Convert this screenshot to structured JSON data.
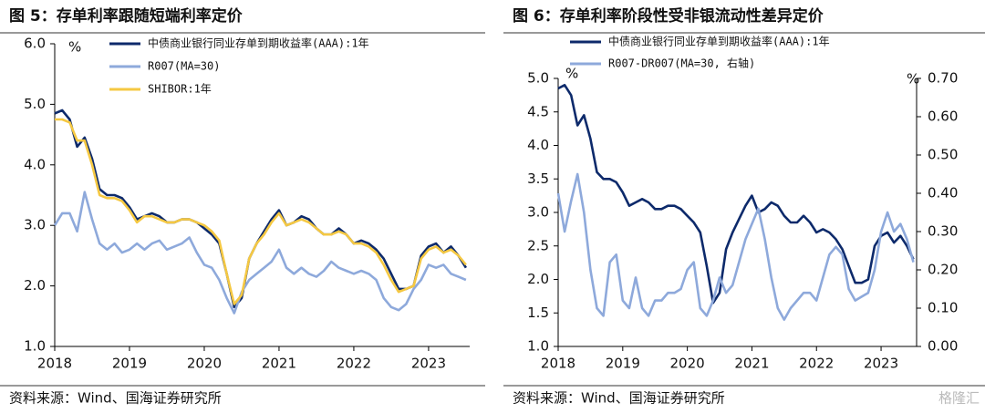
{
  "chart_data": [
    {
      "type": "line",
      "title": "图 5：存单利率跟随短端利率定价",
      "y_unit": "%",
      "source": "资料来源：Wind、国海证券研究所",
      "x": [
        2018.0,
        2018.1,
        2018.2,
        2018.3,
        2018.4,
        2018.5,
        2018.6,
        2018.7,
        2018.8,
        2018.9,
        2019.0,
        2019.1,
        2019.2,
        2019.3,
        2019.4,
        2019.5,
        2019.6,
        2019.7,
        2019.8,
        2019.9,
        2020.0,
        2020.1,
        2020.2,
        2020.3,
        2020.4,
        2020.5,
        2020.6,
        2020.7,
        2020.8,
        2020.9,
        2021.0,
        2021.1,
        2021.2,
        2021.3,
        2021.4,
        2021.5,
        2021.6,
        2021.7,
        2021.8,
        2021.9,
        2022.0,
        2022.1,
        2022.2,
        2022.3,
        2022.4,
        2022.5,
        2022.6,
        2022.7,
        2022.8,
        2022.9,
        2023.0,
        2023.1,
        2023.2,
        2023.3,
        2023.4,
        2023.5
      ],
      "xlim": [
        2018,
        2023.55
      ],
      "xticks": [
        2018,
        2019,
        2020,
        2021,
        2022,
        2023
      ],
      "ylim": [
        1,
        6
      ],
      "yticks": [
        {
          "value": 1,
          "label": "1.0"
        },
        {
          "value": 2,
          "label": "2.0"
        },
        {
          "value": 3,
          "label": "3.0"
        },
        {
          "value": 4,
          "label": "4.0"
        },
        {
          "value": 5,
          "label": "5.0"
        },
        {
          "value": 6,
          "label": "6.0"
        }
      ],
      "series": [
        {
          "name": "中债商业银行同业存单到期收益率(AAA):1年",
          "color": "#0d2a6b",
          "values": [
            4.85,
            4.9,
            4.75,
            4.3,
            4.45,
            4.1,
            3.6,
            3.5,
            3.5,
            3.45,
            3.3,
            3.1,
            3.15,
            3.2,
            3.15,
            3.05,
            3.05,
            3.1,
            3.1,
            3.05,
            2.95,
            2.85,
            2.7,
            2.2,
            1.65,
            1.8,
            2.45,
            2.7,
            2.9,
            3.1,
            3.25,
            3.0,
            3.05,
            3.15,
            3.1,
            2.95,
            2.85,
            2.85,
            2.95,
            2.85,
            2.7,
            2.75,
            2.7,
            2.6,
            2.45,
            2.2,
            1.95,
            1.95,
            2.0,
            2.5,
            2.65,
            2.7,
            2.55,
            2.65,
            2.5,
            2.3
          ]
        },
        {
          "name": "R007(MA=30)",
          "color": "#8ea9db",
          "values": [
            3.0,
            3.2,
            3.2,
            2.9,
            3.55,
            3.1,
            2.7,
            2.6,
            2.7,
            2.55,
            2.6,
            2.7,
            2.6,
            2.7,
            2.75,
            2.6,
            2.65,
            2.7,
            2.8,
            2.55,
            2.35,
            2.3,
            2.1,
            1.8,
            1.55,
            1.9,
            2.1,
            2.2,
            2.3,
            2.4,
            2.6,
            2.3,
            2.2,
            2.3,
            2.2,
            2.15,
            2.25,
            2.4,
            2.3,
            2.25,
            2.2,
            2.25,
            2.2,
            2.1,
            1.8,
            1.65,
            1.6,
            1.7,
            1.95,
            2.1,
            2.35,
            2.3,
            2.35,
            2.2,
            2.15,
            2.1
          ]
        },
        {
          "name": "SHIBOR:1年",
          "color": "#f5c842",
          "values": [
            4.75,
            4.75,
            4.7,
            4.4,
            4.4,
            4.0,
            3.5,
            3.45,
            3.45,
            3.4,
            3.25,
            3.05,
            3.15,
            3.15,
            3.1,
            3.05,
            3.05,
            3.1,
            3.1,
            3.05,
            3.0,
            2.9,
            2.75,
            2.2,
            1.7,
            1.85,
            2.45,
            2.7,
            2.85,
            3.05,
            3.2,
            3.0,
            3.05,
            3.1,
            3.05,
            2.95,
            2.85,
            2.85,
            2.9,
            2.85,
            2.7,
            2.7,
            2.65,
            2.55,
            2.35,
            2.1,
            1.9,
            1.95,
            2.0,
            2.45,
            2.6,
            2.65,
            2.55,
            2.6,
            2.5,
            2.35
          ]
        }
      ]
    },
    {
      "type": "line",
      "title": "图 6：存单利率阶段性受非银流动性差异定价",
      "y_unit": "%",
      "y2_unit": "%",
      "source": "资料来源：Wind、国海证券研究所",
      "watermark": "格隆汇",
      "x": [
        2018.0,
        2018.1,
        2018.2,
        2018.3,
        2018.4,
        2018.5,
        2018.6,
        2018.7,
        2018.8,
        2018.9,
        2019.0,
        2019.1,
        2019.2,
        2019.3,
        2019.4,
        2019.5,
        2019.6,
        2019.7,
        2019.8,
        2019.9,
        2020.0,
        2020.1,
        2020.2,
        2020.3,
        2020.4,
        2020.5,
        2020.6,
        2020.7,
        2020.8,
        2020.9,
        2021.0,
        2021.1,
        2021.2,
        2021.3,
        2021.4,
        2021.5,
        2021.6,
        2021.7,
        2021.8,
        2021.9,
        2022.0,
        2022.1,
        2022.2,
        2022.3,
        2022.4,
        2022.5,
        2022.6,
        2022.7,
        2022.8,
        2022.9,
        2023.0,
        2023.1,
        2023.2,
        2023.3,
        2023.4,
        2023.5
      ],
      "xlim": [
        2018,
        2023.55
      ],
      "xticks": [
        2018,
        2019,
        2020,
        2021,
        2022,
        2023
      ],
      "ylim": [
        1,
        5
      ],
      "yticks": [
        {
          "value": 1,
          "label": "1.0"
        },
        1.5,
        {
          "value": 2,
          "label": "2.0"
        },
        2.5,
        {
          "value": 3,
          "label": "3.0"
        },
        3.5,
        {
          "value": 4,
          "label": "4.0"
        },
        4.5,
        {
          "value": 5,
          "label": "5.0"
        }
      ],
      "y2lim": [
        0,
        0.7
      ],
      "y2ticks": [
        {
          "value": 0,
          "label": "0.00"
        },
        {
          "value": 0.1,
          "label": "0.10"
        },
        {
          "value": 0.2,
          "label": "0.20"
        },
        {
          "value": 0.3,
          "label": "0.30"
        },
        {
          "value": 0.4,
          "label": "0.40"
        },
        {
          "value": 0.5,
          "label": "0.50"
        },
        {
          "value": 0.6,
          "label": "0.60"
        },
        {
          "value": 0.7,
          "label": "0.70"
        }
      ],
      "series": [
        {
          "name": "中债商业银行同业存单到期收益率(AAA):1年",
          "color": "#0d2a6b",
          "values": [
            4.85,
            4.9,
            4.75,
            4.3,
            4.45,
            4.1,
            3.6,
            3.5,
            3.5,
            3.45,
            3.3,
            3.1,
            3.15,
            3.2,
            3.15,
            3.05,
            3.05,
            3.1,
            3.1,
            3.05,
            2.95,
            2.85,
            2.7,
            2.2,
            1.65,
            1.8,
            2.45,
            2.7,
            2.9,
            3.1,
            3.25,
            3.0,
            3.05,
            3.15,
            3.1,
            2.95,
            2.85,
            2.85,
            2.95,
            2.85,
            2.7,
            2.75,
            2.7,
            2.6,
            2.45,
            2.2,
            1.95,
            1.95,
            2.0,
            2.5,
            2.65,
            2.7,
            2.55,
            2.65,
            2.5,
            2.3
          ]
        },
        {
          "name": "R007-DR007(MA=30, 右轴)",
          "color": "#8ea9db",
          "axis": "y2",
          "values": [
            0.4,
            0.3,
            0.38,
            0.45,
            0.35,
            0.2,
            0.1,
            0.08,
            0.22,
            0.24,
            0.12,
            0.1,
            0.18,
            0.1,
            0.08,
            0.12,
            0.12,
            0.14,
            0.14,
            0.15,
            0.2,
            0.22,
            0.1,
            0.08,
            0.12,
            0.18,
            0.14,
            0.16,
            0.22,
            0.28,
            0.32,
            0.36,
            0.28,
            0.18,
            0.1,
            0.07,
            0.1,
            0.12,
            0.14,
            0.14,
            0.12,
            0.18,
            0.24,
            0.26,
            0.24,
            0.15,
            0.12,
            0.13,
            0.14,
            0.2,
            0.3,
            0.35,
            0.3,
            0.32,
            0.28,
            0.22
          ]
        }
      ]
    }
  ]
}
